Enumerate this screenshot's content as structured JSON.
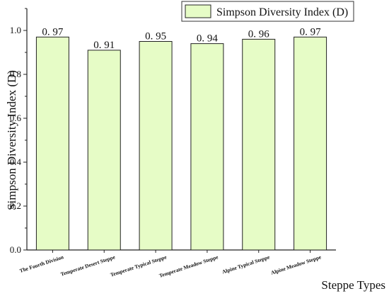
{
  "chart_data": {
    "type": "bar",
    "categories": [
      "The Fourth Division",
      "Temperate Desert Steppe",
      "Temperate Typical Steppe",
      "Temperate Meadow Steppe",
      "Alpine Typical Steppe",
      "Alpine Meadow Steppe"
    ],
    "series": [
      {
        "name": "Simpson Diversity Index (D)",
        "values": [
          0.97,
          0.91,
          0.95,
          0.94,
          0.96,
          0.97
        ],
        "data_labels": [
          "0. 97",
          "0. 91",
          "0. 95",
          "0. 94",
          "0. 96",
          "0. 97"
        ]
      }
    ],
    "xlabel": "Steppe Types",
    "ylabel": "Simpson Diversity Index (D)",
    "ylim": [
      0,
      1.1
    ],
    "yticks": [
      0.0,
      0.2,
      0.4,
      0.6,
      0.8,
      1.0
    ],
    "ytick_labels": [
      "0.0",
      "0.2",
      "0.4",
      "0.6",
      "0.8",
      "1.0"
    ],
    "grid": false,
    "legend_position": "top-right",
    "colors": {
      "bar_fill": "#e6fcc6",
      "bar_stroke": "#222222",
      "axis": "#222222"
    }
  }
}
